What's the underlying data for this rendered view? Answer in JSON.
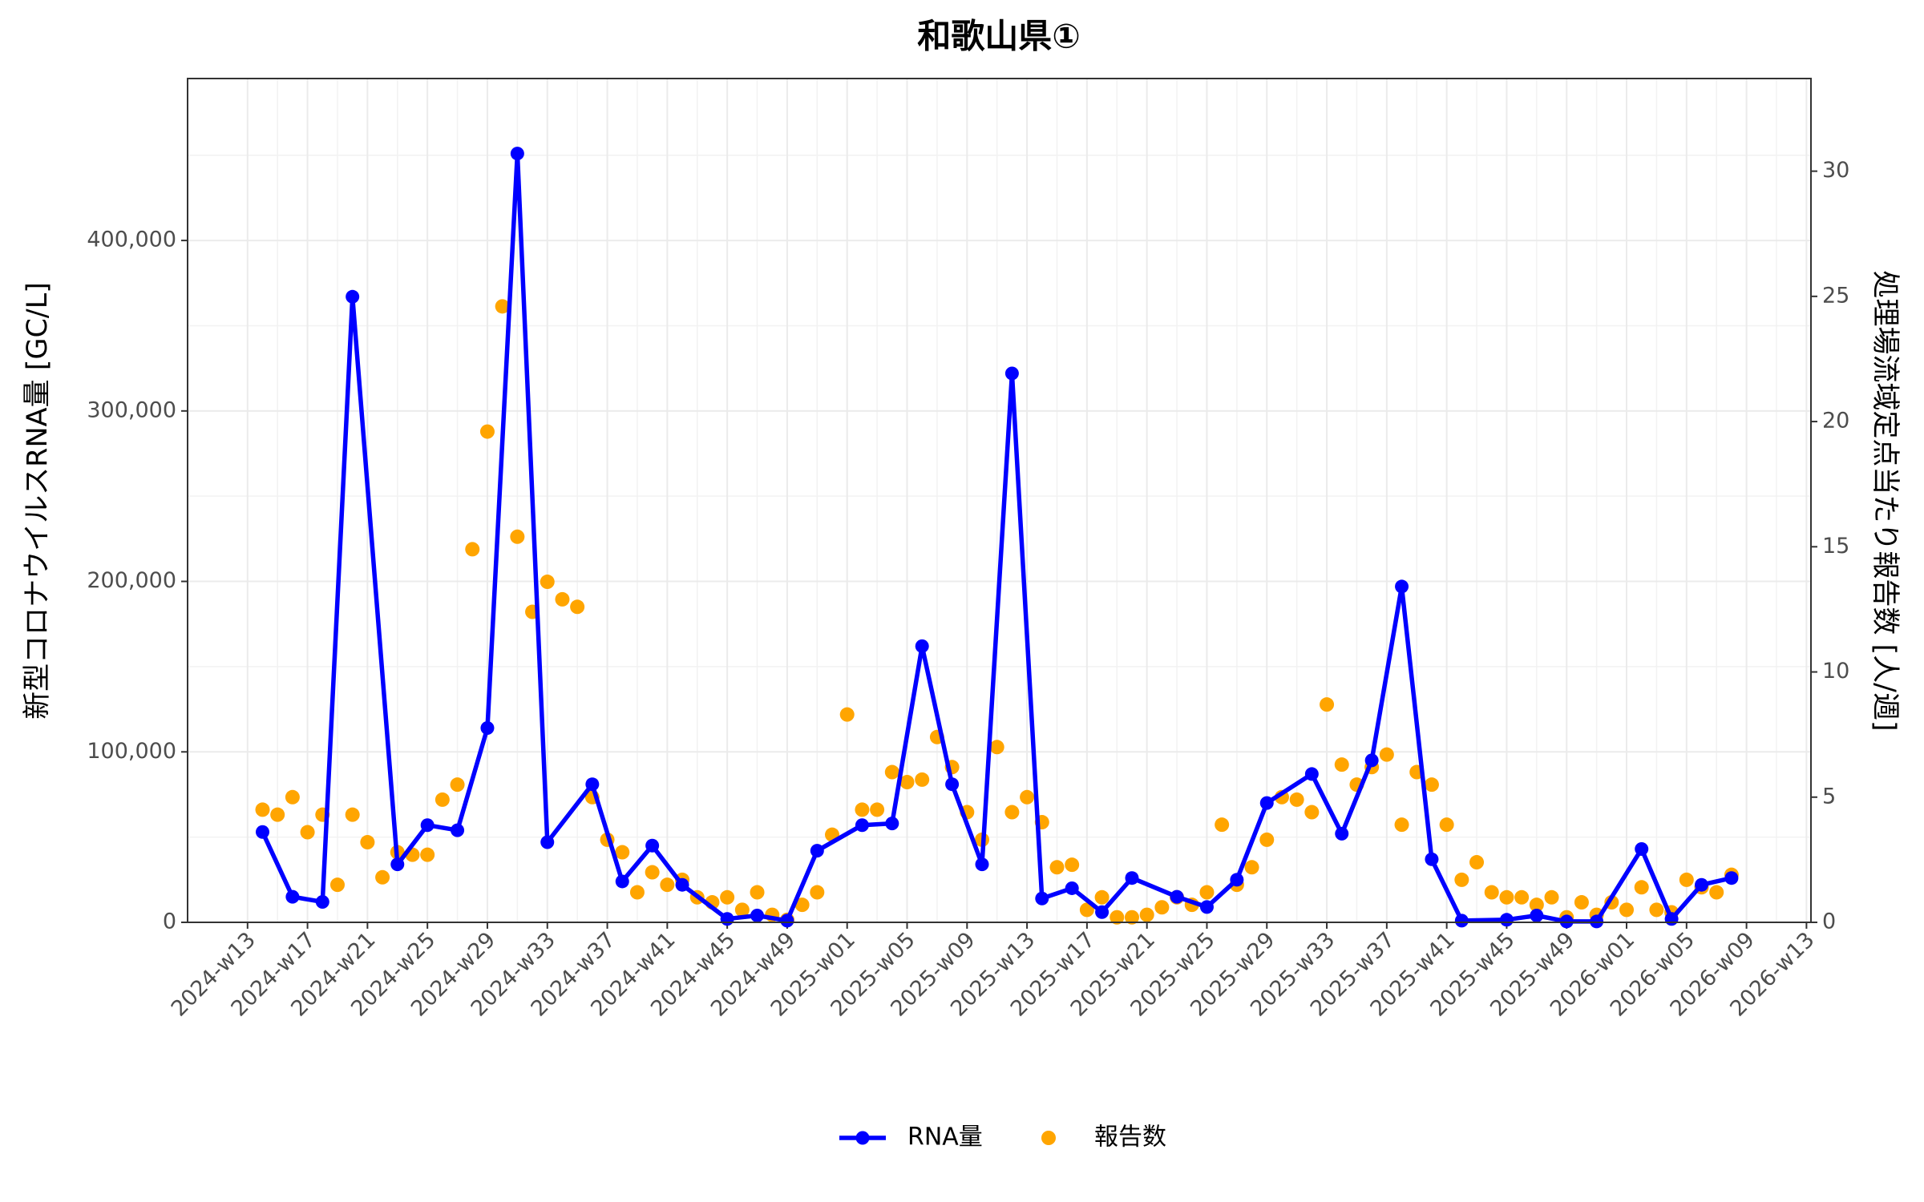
{
  "chart_data": {
    "type": "line",
    "title": "和歌山県①",
    "y_label": "新型コロナウイルスRNA量 [GC/L]",
    "y2_label": "処理場流域定点当たり報告数 [人/週]",
    "xlim": [
      "2024-w09",
      "2026-w13"
    ],
    "xticks": [
      "2024-w13",
      "2024-w17",
      "2024-w21",
      "2024-w25",
      "2024-w29",
      "2024-w33",
      "2024-w37",
      "2024-w41",
      "2024-w45",
      "2024-w49",
      "2025-w01",
      "2025-w05",
      "2025-w09",
      "2025-w13",
      "2025-w17",
      "2025-w21",
      "2025-w25",
      "2025-w29",
      "2025-w33",
      "2025-w37",
      "2025-w41",
      "2025-w45",
      "2025-w49",
      "2026-w01",
      "2026-w05",
      "2026-w09",
      "2026-w13"
    ],
    "ylim": [
      0,
      495000
    ],
    "yticks": [
      0,
      {
        "value": 100000,
        "label": "100,000"
      },
      {
        "value": 200000,
        "label": "200,000"
      },
      {
        "value": 300000,
        "label": "300,000"
      },
      {
        "value": 400000,
        "label": "400,000"
      }
    ],
    "y2lim": [
      0,
      33.7
    ],
    "y2ticks": [
      0,
      5,
      10,
      15,
      20,
      25,
      30
    ],
    "grid": true,
    "legend": "bottom",
    "series": [
      {
        "name": "RNA量",
        "type": "line",
        "color": "#0000ff",
        "x": [
          "2024-w14",
          "2024-w16",
          "2024-w18",
          "2024-w20",
          "2024-w23",
          "2024-w25",
          "2024-w27",
          "2024-w29",
          "2024-w31",
          "2024-w33",
          "2024-w36",
          "2024-w38",
          "2024-w40",
          "2024-w42",
          "2024-w45",
          "2024-w47",
          "2024-w49",
          "2024-w51",
          "2025-w02",
          "2025-w04",
          "2025-w06",
          "2025-w08",
          "2025-w10",
          "2025-w12",
          "2025-w14",
          "2025-w16",
          "2025-w18",
          "2025-w20",
          "2025-w23",
          "2025-w25",
          "2025-w27",
          "2025-w29",
          "2025-w32",
          "2025-w34",
          "2025-w36",
          "2025-w38",
          "2025-w40",
          "2025-w42",
          "2025-w45",
          "2025-w47",
          "2025-w49",
          "2025-w51",
          "2026-w02",
          "2026-w04",
          "2026-w06",
          "2026-w08"
        ],
        "values": [
          53000,
          15000,
          12000,
          367000,
          34000,
          57000,
          54000,
          114000,
          451000,
          47000,
          81000,
          24000,
          45000,
          22000,
          2000,
          4000,
          1000,
          42000,
          57000,
          58000,
          162000,
          81000,
          34000,
          322000,
          14000,
          20000,
          6000,
          26000,
          15000,
          9000,
          25000,
          70000,
          87000,
          52000,
          95000,
          197000,
          37000,
          1000,
          1500,
          4000,
          500,
          500,
          43000,
          2000,
          22000,
          26000
        ]
      },
      {
        "name": "報告数",
        "type": "scatter",
        "color": "#ffa500",
        "axis": "y2",
        "x": [
          "2024-w14",
          "2024-w15",
          "2024-w16",
          "2024-w17",
          "2024-w18",
          "2024-w19",
          "2024-w20",
          "2024-w21",
          "2024-w22",
          "2024-w23",
          "2024-w24",
          "2024-w25",
          "2024-w26",
          "2024-w27",
          "2024-w28",
          "2024-w29",
          "2024-w30",
          "2024-w31",
          "2024-w32",
          "2024-w33",
          "2024-w34",
          "2024-w35",
          "2024-w36",
          "2024-w37",
          "2024-w38",
          "2024-w39",
          "2024-w40",
          "2024-w41",
          "2024-w42",
          "2024-w43",
          "2024-w44",
          "2024-w45",
          "2024-w46",
          "2024-w47",
          "2024-w48",
          "2024-w49",
          "2024-w50",
          "2024-w51",
          "2024-w52",
          "2025-w01",
          "2025-w02",
          "2025-w03",
          "2025-w04",
          "2025-w05",
          "2025-w06",
          "2025-w07",
          "2025-w08",
          "2025-w09",
          "2025-w10",
          "2025-w11",
          "2025-w12",
          "2025-w13",
          "2025-w14",
          "2025-w15",
          "2025-w16",
          "2025-w17",
          "2025-w18",
          "2025-w19",
          "2025-w20",
          "2025-w21",
          "2025-w22",
          "2025-w23",
          "2025-w24",
          "2025-w25",
          "2025-w26",
          "2025-w27",
          "2025-w28",
          "2025-w29",
          "2025-w30",
          "2025-w31",
          "2025-w32",
          "2025-w33",
          "2025-w34",
          "2025-w35",
          "2025-w36",
          "2025-w37",
          "2025-w38",
          "2025-w39",
          "2025-w40",
          "2025-w41",
          "2025-w42",
          "2025-w43",
          "2025-w44",
          "2025-w45",
          "2025-w46",
          "2025-w47",
          "2025-w48",
          "2025-w49",
          "2025-w50",
          "2025-w51",
          "2025-w52",
          "2026-w01",
          "2026-w02",
          "2026-w03",
          "2026-w04",
          "2026-w05",
          "2026-w06",
          "2026-w07",
          "2026-w08"
        ],
        "values": [
          4.5,
          4.3,
          5,
          3.6,
          4.3,
          1.5,
          4.3,
          3.2,
          1.8,
          2.8,
          2.7,
          2.7,
          4.9,
          5.5,
          14.9,
          19.6,
          24.6,
          15.4,
          12.4,
          13.6,
          12.9,
          12.6,
          5,
          3.3,
          2.8,
          1.2,
          2,
          1.5,
          1.7,
          1,
          0.8,
          1,
          0.5,
          1.2,
          0.3,
          0.1,
          0.7,
          1.2,
          3.5,
          8.3,
          4.5,
          4.5,
          6,
          5.6,
          5.7,
          7.4,
          6.2,
          4.4,
          3.3,
          7,
          4.4,
          5,
          4,
          2.2,
          2.3,
          0.5,
          1,
          0.2,
          0.2,
          0.3,
          0.6,
          1,
          0.7,
          1.2,
          3.9,
          1.5,
          2.2,
          3.3,
          5,
          4.9,
          4.4,
          8.7,
          6.3,
          5.5,
          6.2,
          6.7,
          3.9,
          6,
          5.5,
          3.9,
          1.7,
          2.4,
          1.2,
          1,
          1,
          0.7,
          1,
          0.2,
          0.8,
          0.3,
          0.8,
          0.5,
          1.4,
          0.5,
          0.4,
          1.7,
          1.4,
          1.2,
          1.9
        ]
      }
    ]
  }
}
